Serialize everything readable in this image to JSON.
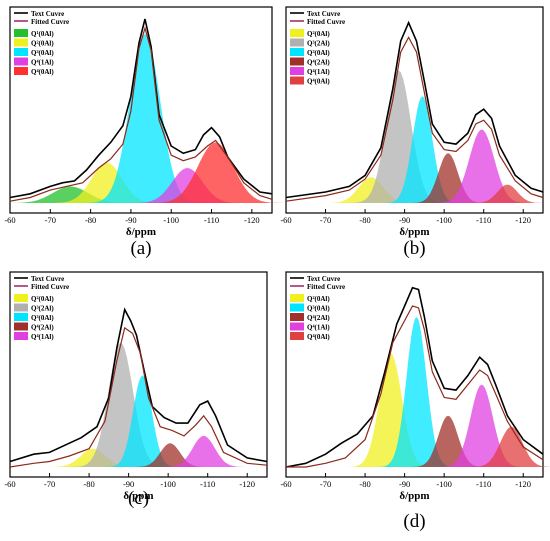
{
  "colors": {
    "experimental": "#000000",
    "fitted": "#a0306a",
    "envelope": "#8b2a1a"
  },
  "chart_data": [
    {
      "panel": "(a)",
      "type": "line",
      "xlabel": "δ/ppm",
      "xlim": [
        -60,
        -125
      ],
      "x_ticks": [
        -60,
        -70,
        -80,
        -90,
        -100,
        -110,
        -120
      ],
      "legend_position": "top-left",
      "series": [
        {
          "name": "Text Cuvre",
          "color": "#000000",
          "points": [
            [
              -60,
              0.03
            ],
            [
              -65,
              0.05
            ],
            [
              -70,
              0.09
            ],
            [
              -73,
              0.11
            ],
            [
              -76,
              0.12
            ],
            [
              -79,
              0.18
            ],
            [
              -82,
              0.26
            ],
            [
              -85,
              0.33
            ],
            [
              -88,
              0.42
            ],
            [
              -90,
              0.58
            ],
            [
              -92,
              0.87
            ],
            [
              -93.5,
              1.0
            ],
            [
              -95,
              0.85
            ],
            [
              -97,
              0.48
            ],
            [
              -100,
              0.31
            ],
            [
              -103,
              0.27
            ],
            [
              -106,
              0.29
            ],
            [
              -108,
              0.37
            ],
            [
              -110,
              0.41
            ],
            [
              -112,
              0.36
            ],
            [
              -114,
              0.25
            ],
            [
              -118,
              0.13
            ],
            [
              -122,
              0.06
            ],
            [
              -125,
              0.05
            ]
          ]
        },
        {
          "name": "Fitted Cuvre",
          "color": "#a0306a",
          "points": [
            [
              -60,
              0.01
            ],
            [
              -65,
              0.03
            ],
            [
              -70,
              0.07
            ],
            [
              -74,
              0.09
            ],
            [
              -78,
              0.11
            ],
            [
              -82,
              0.19
            ],
            [
              -85,
              0.24
            ],
            [
              -88,
              0.32
            ],
            [
              -90,
              0.5
            ],
            [
              -92,
              0.84
            ],
            [
              -93.5,
              0.95
            ],
            [
              -95,
              0.83
            ],
            [
              -97,
              0.45
            ],
            [
              -100,
              0.26
            ],
            [
              -103,
              0.23
            ],
            [
              -106,
              0.25
            ],
            [
              -109,
              0.31
            ],
            [
              -111,
              0.34
            ],
            [
              -114,
              0.25
            ],
            [
              -118,
              0.11
            ],
            [
              -122,
              0.04
            ],
            [
              -125,
              0.02
            ]
          ]
        }
      ],
      "peaks": [
        {
          "label": "Q¹(0Al)",
          "center": -75,
          "height": 0.09,
          "width": 7,
          "color": "#22c02a"
        },
        {
          "label": "Q²(0Al)",
          "center": -84,
          "height": 0.22,
          "width": 6,
          "color": "#f0f020"
        },
        {
          "label": "Q³(0Al)",
          "center": -93.5,
          "height": 0.92,
          "width": 6,
          "color": "#00e5ff"
        },
        {
          "label": "Q⁴(1Al)",
          "center": -104,
          "height": 0.19,
          "width": 6,
          "color": "#e040e0"
        },
        {
          "label": "Q⁴(0Al)",
          "center": -111,
          "height": 0.33,
          "width": 7,
          "color": "#ff3030"
        }
      ]
    },
    {
      "panel": "(b)",
      "type": "line",
      "xlabel": "δ/ppm",
      "xlim": [
        -60,
        -125
      ],
      "x_ticks": [
        -60,
        -70,
        -80,
        -90,
        -100,
        -110,
        -120
      ],
      "legend_position": "top-left",
      "series": [
        {
          "name": "Text Cuvre",
          "color": "#000000",
          "points": [
            [
              -60,
              0.03
            ],
            [
              -70,
              0.06
            ],
            [
              -76,
              0.09
            ],
            [
              -80,
              0.15
            ],
            [
              -84,
              0.3
            ],
            [
              -87,
              0.62
            ],
            [
              -89,
              0.88
            ],
            [
              -91,
              0.98
            ],
            [
              -93,
              0.88
            ],
            [
              -95,
              0.66
            ],
            [
              -97,
              0.43
            ],
            [
              -100,
              0.33
            ],
            [
              -103,
              0.32
            ],
            [
              -106,
              0.38
            ],
            [
              -108,
              0.48
            ],
            [
              -110,
              0.51
            ],
            [
              -112,
              0.46
            ],
            [
              -114,
              0.31
            ],
            [
              -118,
              0.15
            ],
            [
              -122,
              0.08
            ],
            [
              -125,
              0.06
            ]
          ]
        },
        {
          "name": "Fitted Cuvre",
          "color": "#a0306a",
          "points": [
            [
              -60,
              0.01
            ],
            [
              -70,
              0.04
            ],
            [
              -76,
              0.07
            ],
            [
              -80,
              0.13
            ],
            [
              -84,
              0.26
            ],
            [
              -87,
              0.56
            ],
            [
              -89,
              0.82
            ],
            [
              -91,
              0.9
            ],
            [
              -93,
              0.82
            ],
            [
              -95,
              0.6
            ],
            [
              -97,
              0.38
            ],
            [
              -100,
              0.29
            ],
            [
              -103,
              0.28
            ],
            [
              -106,
              0.34
            ],
            [
              -108,
              0.43
            ],
            [
              -110,
              0.45
            ],
            [
              -112,
              0.4
            ],
            [
              -114,
              0.26
            ],
            [
              -118,
              0.12
            ],
            [
              -122,
              0.05
            ],
            [
              -125,
              0.03
            ]
          ]
        }
      ],
      "peaks": [
        {
          "label": "Q²(0Al)",
          "center": -81.5,
          "height": 0.14,
          "width": 5,
          "color": "#f0f020"
        },
        {
          "label": "Q³(2Al)",
          "center": -88.5,
          "height": 0.72,
          "width": 5,
          "color": "#b0b0b0"
        },
        {
          "label": "Q³(0Al)",
          "center": -94.5,
          "height": 0.58,
          "width": 4,
          "color": "#00e5ff"
        },
        {
          "label": "Q⁴(2Al)",
          "center": -101,
          "height": 0.27,
          "width": 4,
          "color": "#a0302a"
        },
        {
          "label": "Q⁴(1Al)",
          "center": -109.5,
          "height": 0.4,
          "width": 5,
          "color": "#e040e0"
        },
        {
          "label": "Q⁴(0Al)",
          "center": -116,
          "height": 0.1,
          "width": 4,
          "color": "#e04040"
        }
      ]
    },
    {
      "panel": "(c)",
      "type": "line",
      "xlabel": "δ/ppm",
      "xlim": [
        -60,
        -125
      ],
      "x_ticks": [
        -60,
        -70,
        -80,
        -90,
        -100,
        -110,
        -120
      ],
      "legend_position": "top-left",
      "series": [
        {
          "name": "Text Cuvre",
          "color": "#000000",
          "points": [
            [
              -60,
              0.03
            ],
            [
              -66,
              0.07
            ],
            [
              -70,
              0.08
            ],
            [
              -75,
              0.13
            ],
            [
              -78,
              0.16
            ],
            [
              -82,
              0.22
            ],
            [
              -85,
              0.38
            ],
            [
              -87,
              0.65
            ],
            [
              -89,
              0.86
            ],
            [
              -90.5,
              0.8
            ],
            [
              -92,
              0.72
            ],
            [
              -94,
              0.52
            ],
            [
              -96,
              0.33
            ],
            [
              -99,
              0.27
            ],
            [
              -102,
              0.24
            ],
            [
              -105,
              0.24
            ],
            [
              -108,
              0.34
            ],
            [
              -110,
              0.36
            ],
            [
              -112,
              0.28
            ],
            [
              -115,
              0.12
            ],
            [
              -120,
              0.05
            ],
            [
              -125,
              0.03
            ]
          ]
        },
        {
          "name": "Fitted Cuvre",
          "color": "#a0306a",
          "points": [
            [
              -60,
              0.0
            ],
            [
              -66,
              0.02
            ],
            [
              -70,
              0.03
            ],
            [
              -75,
              0.06
            ],
            [
              -80,
              0.1
            ],
            [
              -84,
              0.25
            ],
            [
              -87,
              0.58
            ],
            [
              -89,
              0.76
            ],
            [
              -91,
              0.73
            ],
            [
              -93,
              0.62
            ],
            [
              -95,
              0.38
            ],
            [
              -98,
              0.22
            ],
            [
              -101,
              0.2
            ],
            [
              -104,
              0.17
            ],
            [
              -107,
              0.23
            ],
            [
              -109,
              0.28
            ],
            [
              -111,
              0.22
            ],
            [
              -114,
              0.08
            ],
            [
              -120,
              0.02
            ],
            [
              -125,
              0.01
            ]
          ]
        }
      ],
      "peaks": [
        {
          "label": "Q²(0Al)",
          "center": -81,
          "height": 0.1,
          "width": 5,
          "color": "#f0f020"
        },
        {
          "label": "Q³(2Al)",
          "center": -88,
          "height": 0.68,
          "width": 5,
          "color": "#b0b0b0"
        },
        {
          "label": "Q³(0Al)",
          "center": -93.5,
          "height": 0.5,
          "width": 3.8,
          "color": "#00e5ff"
        },
        {
          "label": "Q⁴(2Al)",
          "center": -100.5,
          "height": 0.13,
          "width": 4,
          "color": "#a0302a"
        },
        {
          "label": "Q⁴(1Al)",
          "center": -109,
          "height": 0.17,
          "width": 4.5,
          "color": "#e040e0"
        }
      ]
    },
    {
      "panel": "(d)",
      "type": "line",
      "xlabel": "δ/ppm",
      "xlim": [
        -60,
        -125
      ],
      "x_ticks": [
        -60,
        -70,
        -80,
        -90,
        -100,
        -110,
        -120
      ],
      "legend_position": "top-left",
      "series": [
        {
          "name": "Text Cuvre",
          "color": "#000000",
          "points": [
            [
              -60,
              0.0
            ],
            [
              -65,
              0.02
            ],
            [
              -70,
              0.07
            ],
            [
              -74,
              0.13
            ],
            [
              -78,
              0.18
            ],
            [
              -82,
              0.28
            ],
            [
              -85,
              0.52
            ],
            [
              -88,
              0.78
            ],
            [
              -90,
              0.88
            ],
            [
              -92,
              0.98
            ],
            [
              -93.5,
              0.97
            ],
            [
              -95,
              0.82
            ],
            [
              -97,
              0.58
            ],
            [
              -100,
              0.43
            ],
            [
              -103,
              0.42
            ],
            [
              -106,
              0.5
            ],
            [
              -109,
              0.6
            ],
            [
              -111,
              0.56
            ],
            [
              -113,
              0.45
            ],
            [
              -116,
              0.28
            ],
            [
              -120,
              0.15
            ],
            [
              -125,
              0.07
            ]
          ]
        },
        {
          "name": "Fitted Cuvre",
          "color": "#a0306a",
          "points": [
            [
              -60,
              0.0
            ],
            [
              -65,
              0.0
            ],
            [
              -70,
              0.02
            ],
            [
              -75,
              0.05
            ],
            [
              -80,
              0.15
            ],
            [
              -84,
              0.4
            ],
            [
              -87,
              0.68
            ],
            [
              -90,
              0.8
            ],
            [
              -92,
              0.88
            ],
            [
              -93.5,
              0.87
            ],
            [
              -95,
              0.75
            ],
            [
              -97,
              0.52
            ],
            [
              -100,
              0.38
            ],
            [
              -103,
              0.37
            ],
            [
              -106,
              0.45
            ],
            [
              -109,
              0.53
            ],
            [
              -111,
              0.5
            ],
            [
              -113,
              0.4
            ],
            [
              -116,
              0.25
            ],
            [
              -120,
              0.11
            ],
            [
              -125,
              0.04
            ]
          ]
        }
      ],
      "peaks": [
        {
          "label": "Q²(0Al)",
          "center": -86.5,
          "height": 0.62,
          "width": 4.5,
          "color": "#f0f020"
        },
        {
          "label": "Q³(0Al)",
          "center": -93,
          "height": 0.82,
          "width": 4,
          "color": "#00e5ff"
        },
        {
          "label": "Q⁴(2Al)",
          "center": -101,
          "height": 0.28,
          "width": 4,
          "color": "#a0302a"
        },
        {
          "label": "Q⁴(1Al)",
          "center": -109.5,
          "height": 0.45,
          "width": 4.5,
          "color": "#e040e0"
        },
        {
          "label": "Q⁴(0Al)",
          "center": -117,
          "height": 0.22,
          "width": 4.5,
          "color": "#e04040"
        }
      ]
    }
  ]
}
